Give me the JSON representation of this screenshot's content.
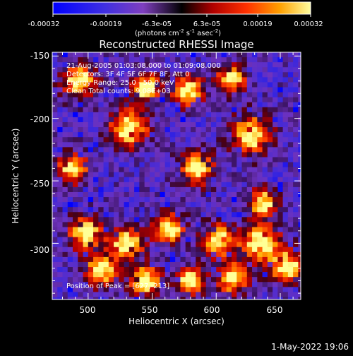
{
  "colorbar": {
    "ticks": [
      "-0.00032",
      "-0.00019",
      "-6.3e-05",
      "6.3e-05",
      "0.00019",
      "0.00032"
    ],
    "unit_main": "(photons cm",
    "unit_exp1": "-2",
    "unit_mid": " s",
    "unit_exp2": "-1",
    "unit_end": " asec",
    "unit_exp3": "-2",
    "unit_close": ")"
  },
  "title": "Reconstructed RHESSI Image",
  "info": {
    "line1": "21-Aug-2005 01:03:08.000 to 01:09:08.000",
    "line2": "Detectors: 3F 4F 5F 6F 7F 8F, Att 0",
    "line3": "Energy Range: 25.0 - 50.0 keV",
    "line4": "Clean     Total counts: 9.08E+03",
    "peak": "Position of Peak = [627,-213]"
  },
  "footer": {
    "date": "1-May-2022 19:06"
  },
  "colors": {
    "low": "#0000ff",
    "mid_low": "#7f3fbf",
    "mid": "#000000",
    "high1": "#cc0000",
    "high2": "#ff8000",
    "high3": "#ffff80"
  },
  "chart_data": {
    "type": "heatmap",
    "title": "Reconstructed RHESSI Image",
    "xlabel": "Heliocentric X (arcsec)",
    "ylabel": "Heliocentric Y (arcsec)",
    "xlim": [
      472,
      666
    ],
    "ylim": [
      -345,
      -147
    ],
    "xticks": [
      500,
      550,
      600,
      650
    ],
    "yticks": [
      -150,
      -200,
      -250,
      -300
    ],
    "xtick_labels": [
      "500",
      "550",
      "600",
      "650"
    ],
    "ytick_labels": [
      "-150",
      "-200",
      "-250",
      "-300"
    ],
    "colorbar_range": [
      -0.00032,
      0.00032
    ],
    "peak": [
      627,
      -213
    ],
    "sources": [
      {
        "x": 627,
        "y": -213,
        "r": 14
      },
      {
        "x": 532,
        "y": -207,
        "r": 14
      },
      {
        "x": 493,
        "y": -170,
        "r": 12
      },
      {
        "x": 578,
        "y": -178,
        "r": 11
      },
      {
        "x": 545,
        "y": -175,
        "r": 10
      },
      {
        "x": 612,
        "y": -168,
        "r": 10
      },
      {
        "x": 585,
        "y": -240,
        "r": 12
      },
      {
        "x": 488,
        "y": -240,
        "r": 11
      },
      {
        "x": 636,
        "y": -268,
        "r": 10
      },
      {
        "x": 498,
        "y": -292,
        "r": 12
      },
      {
        "x": 530,
        "y": -300,
        "r": 12
      },
      {
        "x": 563,
        "y": -288,
        "r": 11
      },
      {
        "x": 602,
        "y": -298,
        "r": 12
      },
      {
        "x": 635,
        "y": -300,
        "r": 14
      },
      {
        "x": 655,
        "y": -318,
        "r": 12
      },
      {
        "x": 510,
        "y": -322,
        "r": 11
      },
      {
        "x": 545,
        "y": -330,
        "r": 11
      },
      {
        "x": 580,
        "y": -330,
        "r": 10
      },
      {
        "x": 613,
        "y": -328,
        "r": 11
      }
    ]
  }
}
